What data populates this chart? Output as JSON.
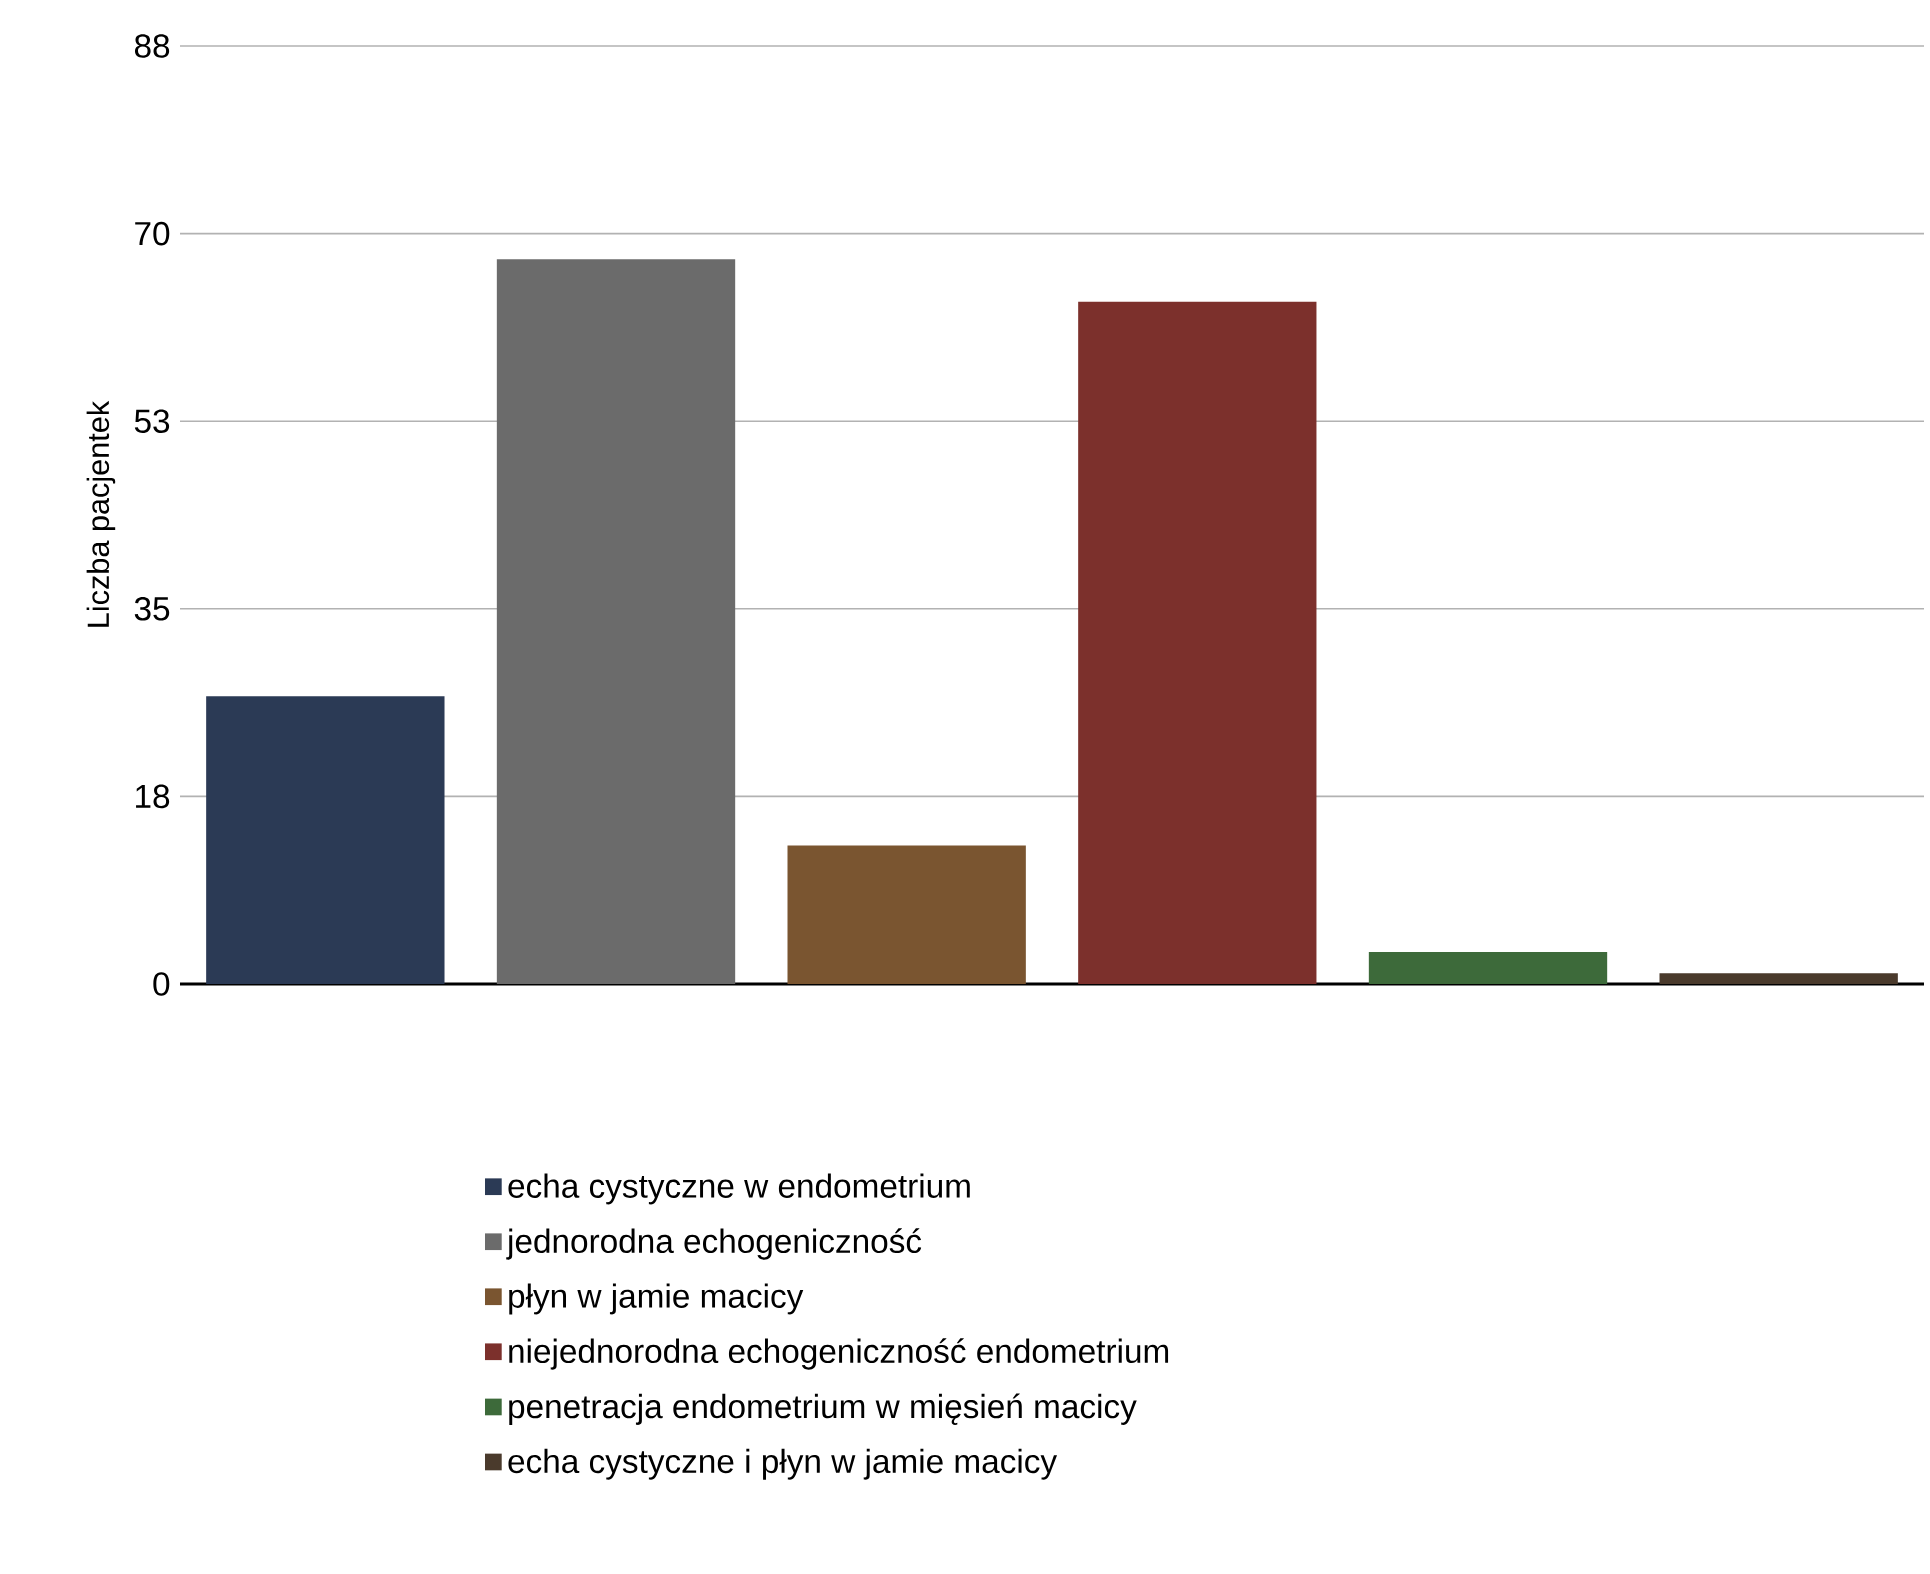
{
  "chart_data": {
    "type": "bar",
    "ylabel": "Liczba pacjentek",
    "categories": [
      null,
      null,
      null,
      null,
      null,
      null
    ],
    "series": [
      {
        "name": "echa cystyczne w endometrium",
        "color": "#2b3a55",
        "values": [
          27,
          null,
          null,
          null,
          null,
          null
        ]
      },
      {
        "name": "jednorodna echogeniczność",
        "color": "#6b6b6b",
        "values": [
          null,
          68,
          null,
          null,
          null,
          null
        ]
      },
      {
        "name": "płyn w jamie macicy",
        "color": "#7a5530",
        "values": [
          null,
          null,
          13,
          null,
          null,
          null
        ]
      },
      {
        "name": "niejednorodna echogeniczność endometrium",
        "color": "#7c302c",
        "values": [
          null,
          null,
          null,
          64,
          null,
          null
        ]
      },
      {
        "name": "penetracja endometrium w mięsień macicy",
        "color": "#3d6a3a",
        "values": [
          null,
          null,
          null,
          null,
          3,
          null
        ]
      },
      {
        "name": "echa cystyczne i płyn w jamie macicy",
        "color": "#4a3a2c",
        "values": [
          null,
          null,
          null,
          null,
          null,
          1
        ]
      }
    ],
    "ylim": [
      0,
      88
    ],
    "yticks": [
      0,
      {
        "value": 17.6,
        "label": "18"
      },
      {
        "value": 35.2,
        "label": "35"
      },
      {
        "value": 52.8,
        "label": "53"
      },
      {
        "value": 70.4,
        "label": "70"
      },
      88
    ],
    "grid": "y",
    "legend": "bottom"
  }
}
